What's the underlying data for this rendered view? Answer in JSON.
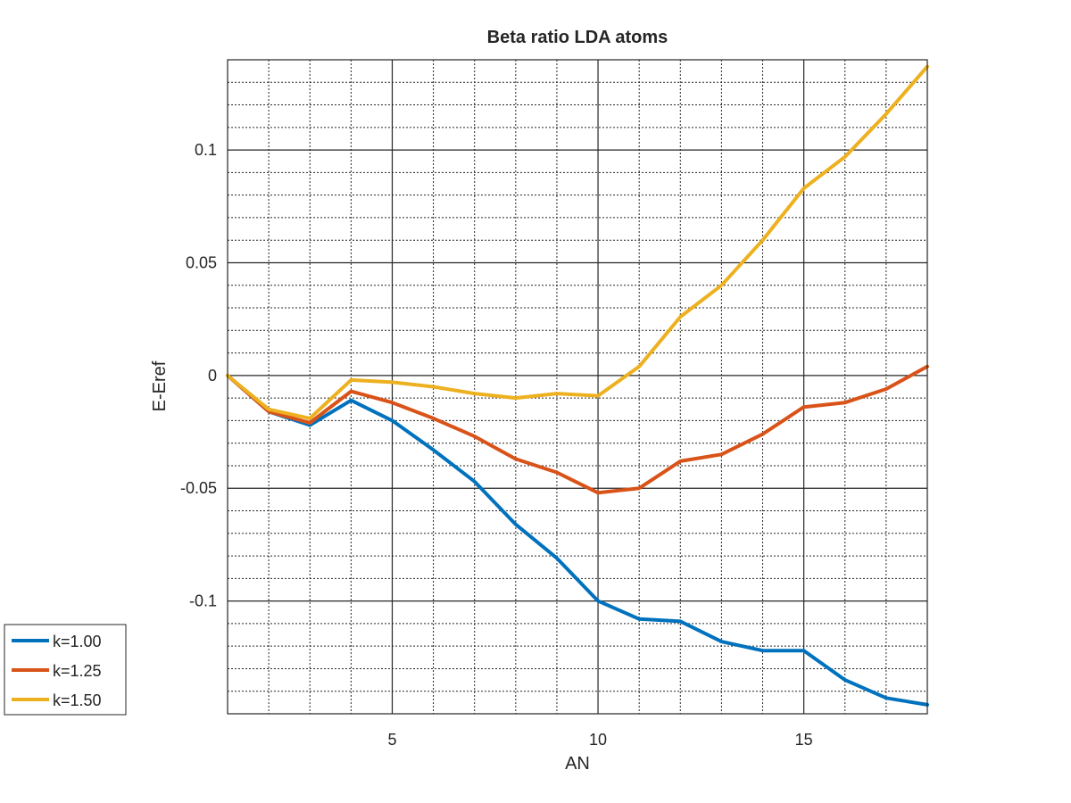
{
  "chart_data": {
    "type": "line",
    "title": "Beta ratio LDA atoms",
    "xlabel": "AN",
    "ylabel": "E-Eref",
    "xlim": [
      1,
      18
    ],
    "ylim": [
      -0.15,
      0.14
    ],
    "x": [
      1,
      2,
      3,
      4,
      5,
      6,
      7,
      8,
      9,
      10,
      11,
      12,
      13,
      14,
      15,
      16,
      17,
      18
    ],
    "x_ticks": [
      5,
      10,
      15
    ],
    "x_tick_labels": [
      "5",
      "10",
      "15"
    ],
    "x_minor_grid": [
      1,
      2,
      3,
      4,
      6,
      7,
      8,
      9,
      11,
      12,
      13,
      14,
      16,
      17,
      18
    ],
    "y_ticks": [
      -0.1,
      -0.05,
      0,
      0.05,
      0.1
    ],
    "y_tick_labels": [
      "-0.1",
      "-0.05",
      "0",
      "0.05",
      "0.1"
    ],
    "y_minor_step": 0.01,
    "grid": true,
    "minor_grid": true,
    "legend_position": "outside-bottom-left",
    "series": [
      {
        "name": "k=1.00",
        "color": "#0072BD",
        "values": [
          0.0,
          -0.016,
          -0.022,
          -0.011,
          -0.02,
          -0.033,
          -0.047,
          -0.066,
          -0.081,
          -0.1,
          -0.108,
          -0.109,
          -0.118,
          -0.122,
          -0.122,
          -0.135,
          -0.143,
          -0.146
        ]
      },
      {
        "name": "k=1.25",
        "color": "#D95319",
        "values": [
          0.0,
          -0.016,
          -0.021,
          -0.007,
          -0.012,
          -0.019,
          -0.027,
          -0.037,
          -0.043,
          -0.052,
          -0.05,
          -0.038,
          -0.035,
          -0.026,
          -0.014,
          -0.012,
          -0.006,
          0.004
        ]
      },
      {
        "name": "k=1.50",
        "color": "#EDB120",
        "values": [
          0.0,
          -0.015,
          -0.019,
          -0.002,
          -0.003,
          -0.005,
          -0.008,
          -0.01,
          -0.008,
          -0.009,
          0.004,
          0.026,
          0.04,
          0.06,
          0.083,
          0.097,
          0.116,
          0.137
        ]
      }
    ]
  }
}
